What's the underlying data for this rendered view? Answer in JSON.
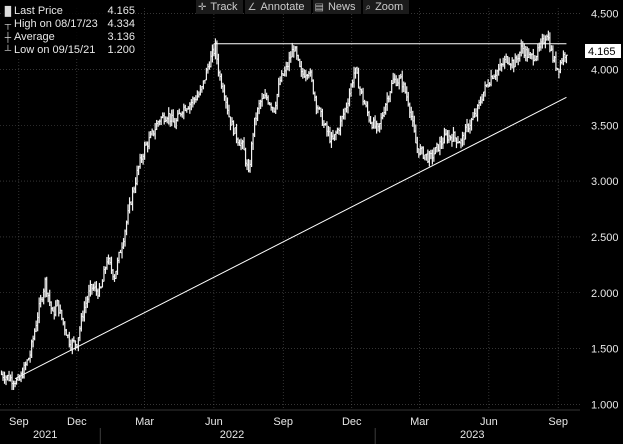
{
  "legend": {
    "items": [
      {
        "marker": "white-square-icon",
        "label": "Last Price",
        "value": "4.165"
      },
      {
        "marker": "high-tick-icon",
        "label": "High on 08/17/23",
        "value": "4.334"
      },
      {
        "marker": "average-marker-icon",
        "label": "Average",
        "value": "3.136"
      },
      {
        "marker": "low-tick-icon",
        "label": "Low on 09/15/21",
        "value": "1.200"
      }
    ]
  },
  "toolbar": {
    "items": [
      {
        "icon": "crosshair-icon",
        "label": "Track"
      },
      {
        "icon": "pencil-icon",
        "label": "Annotate"
      },
      {
        "icon": "news-icon",
        "label": "News"
      },
      {
        "icon": "magnifier-icon",
        "label": "Zoom"
      }
    ]
  },
  "chart_data": {
    "type": "line",
    "ylim": [
      0.95,
      4.55
    ],
    "yticks": [
      "1.000",
      "1.500",
      "2.000",
      "2.500",
      "3.000",
      "3.500",
      "4.000",
      "4.500"
    ],
    "ytick_values": [
      1.0,
      1.5,
      2.0,
      2.5,
      3.0,
      3.5,
      4.0,
      4.5
    ],
    "last_price_label": "4.165",
    "xticks": [
      {
        "label": "Sep",
        "date": "2021-09-15"
      },
      {
        "label": "Dec",
        "date": "2021-12-01"
      },
      {
        "label": "Mar",
        "date": "2022-03-01"
      },
      {
        "label": "Jun",
        "date": "2022-06-01"
      },
      {
        "label": "Sep",
        "date": "2022-09-01"
      },
      {
        "label": "Dec",
        "date": "2022-12-01"
      },
      {
        "label": "Mar",
        "date": "2023-03-01"
      },
      {
        "label": "Jun",
        "date": "2023-06-01"
      },
      {
        "label": "Sep",
        "date": "2023-09-01"
      }
    ],
    "years": [
      {
        "label": "2021",
        "date": "2021-10-20"
      },
      {
        "label": "2022",
        "date": "2022-06-25"
      },
      {
        "label": "2023",
        "date": "2023-05-10"
      }
    ],
    "xlim": [
      "2021-08-21",
      "2023-09-30"
    ],
    "series": [
      {
        "dates": [
          "2021-08-23",
          "2021-09-15",
          "2021-09-30",
          "2021-10-10",
          "2021-10-20",
          "2021-10-30",
          "2021-11-05",
          "2021-11-12",
          "2021-11-22",
          "2021-12-01",
          "2021-12-10",
          "2021-12-20",
          "2022-01-01",
          "2022-01-10",
          "2022-01-20",
          "2022-02-01",
          "2022-02-10",
          "2022-02-20",
          "2022-03-01",
          "2022-03-10",
          "2022-03-20",
          "2022-04-01",
          "2022-04-10",
          "2022-04-20",
          "2022-05-01",
          "2022-05-15",
          "2022-05-25",
          "2022-06-03",
          "2022-06-08",
          "2022-06-15",
          "2022-06-22",
          "2022-07-01",
          "2022-07-10",
          "2022-07-17",
          "2022-07-24",
          "2022-08-01",
          "2022-08-10",
          "2022-08-20",
          "2022-08-28",
          "2022-09-05",
          "2022-09-15",
          "2022-09-25",
          "2022-10-05",
          "2022-10-15",
          "2022-10-25",
          "2022-11-05",
          "2022-11-15",
          "2022-11-25",
          "2022-12-05",
          "2022-12-15",
          "2022-12-25",
          "2023-01-05",
          "2023-01-15",
          "2023-01-25",
          "2023-02-05",
          "2023-02-15",
          "2023-02-25",
          "2023-03-05",
          "2023-03-15",
          "2023-03-25",
          "2023-04-05",
          "2023-04-15",
          "2023-04-25",
          "2023-05-05",
          "2023-05-15",
          "2023-05-25",
          "2023-06-05",
          "2023-06-15",
          "2023-06-25",
          "2023-07-05",
          "2023-07-15",
          "2023-07-25",
          "2023-08-05",
          "2023-08-12",
          "2023-08-17",
          "2023-08-25",
          "2023-09-01",
          "2023-09-06",
          "2023-09-12"
        ],
        "values": [
          1.27,
          1.2,
          1.45,
          1.8,
          2.1,
          1.8,
          1.9,
          1.75,
          1.55,
          1.55,
          1.85,
          2.05,
          2.0,
          2.3,
          2.15,
          2.5,
          2.8,
          3.1,
          3.3,
          3.4,
          3.55,
          3.6,
          3.5,
          3.65,
          3.7,
          3.8,
          4.05,
          4.2,
          3.95,
          3.8,
          3.55,
          3.4,
          3.3,
          3.05,
          3.5,
          3.7,
          3.75,
          3.65,
          3.9,
          4.0,
          4.2,
          3.95,
          4.0,
          3.7,
          3.5,
          3.35,
          3.5,
          3.7,
          4.0,
          3.75,
          3.55,
          3.45,
          3.7,
          3.9,
          3.9,
          3.7,
          3.3,
          3.25,
          3.2,
          3.3,
          3.4,
          3.4,
          3.35,
          3.5,
          3.6,
          3.8,
          3.95,
          4.0,
          4.1,
          4.05,
          4.2,
          4.1,
          4.15,
          4.25,
          4.33,
          4.1,
          4.0,
          4.1,
          4.165
        ]
      }
    ],
    "annotations": [
      {
        "type": "hline",
        "y": 4.23,
        "from": "2022-06-01",
        "to": "2023-09-12"
      },
      {
        "type": "trendline",
        "from": {
          "date": "2021-09-10",
          "y": 1.23
        },
        "to": {
          "date": "2023-09-12",
          "y": 3.75
        }
      }
    ]
  }
}
